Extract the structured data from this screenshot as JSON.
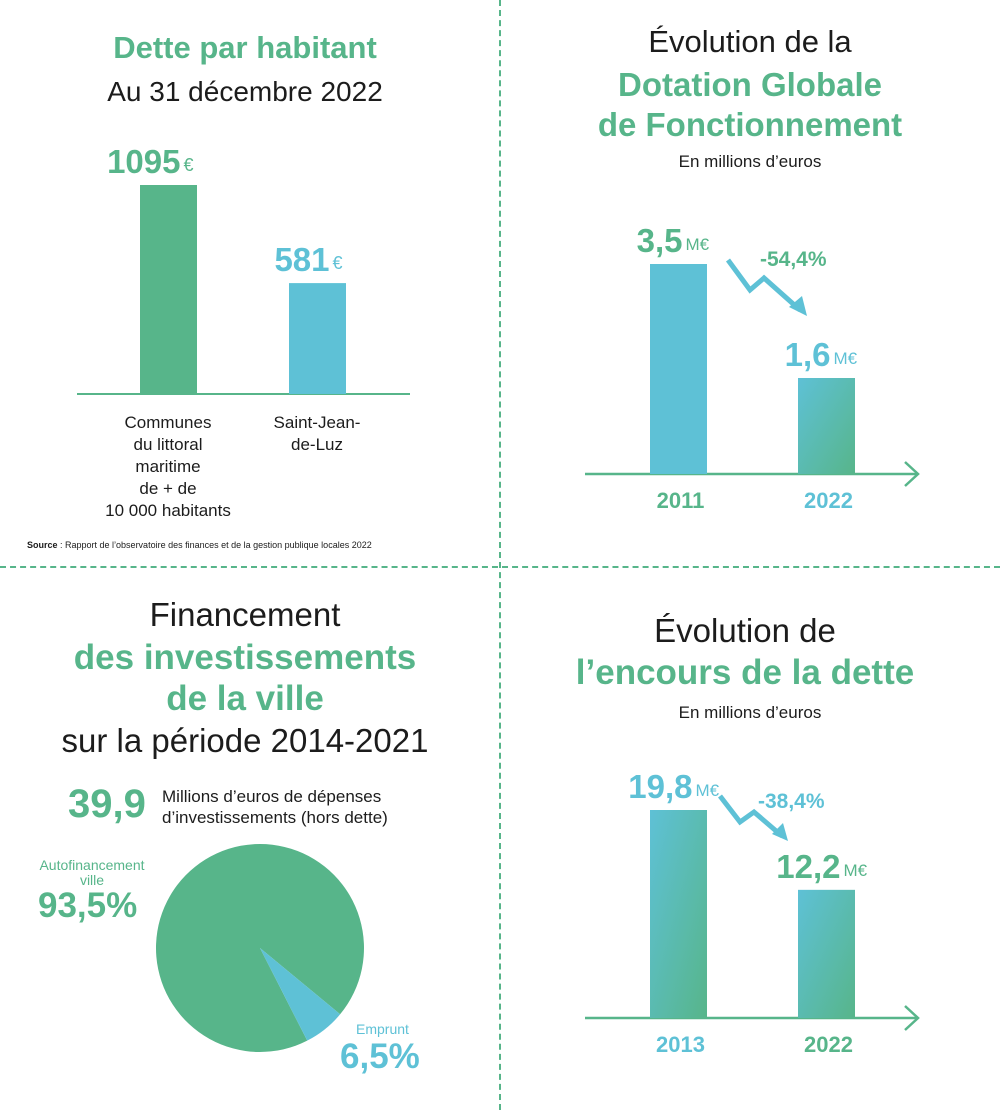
{
  "colors": {
    "green": "#57b58a",
    "blue": "#5ec1d6",
    "text": "#1c1c1c"
  },
  "chart_data": [
    {
      "type": "bar",
      "title": "Dette par habitant",
      "subtitle": "Au 31 décembre 2022",
      "categories": [
        "Communes du littoral maritime de + de 10 000 habitants",
        "Saint-Jean-de-Luz"
      ],
      "category_lines": [
        [
          "Communes",
          "du littoral",
          "maritime",
          "de + de",
          "10 000 habitants"
        ],
        [
          "Saint-Jean-",
          "de-Luz"
        ]
      ],
      "values": [
        1095,
        581
      ],
      "value_labels": [
        "1095",
        "581"
      ],
      "unit": "€",
      "source_label": "Source",
      "source_text": " : Rapport de l’observatoire des finances et de la gestion publique locales 2022"
    },
    {
      "type": "bar",
      "title_line1": "Évolution de la",
      "title_line2": "Dotation Globale",
      "title_line3": "de Fonctionnement",
      "subtitle": "En millions d’euros",
      "categories": [
        "2011",
        "2022"
      ],
      "values": [
        3.5,
        1.6
      ],
      "value_labels": [
        "3,5",
        "1,6"
      ],
      "unit": "M€",
      "change_label": "-54,4%"
    },
    {
      "type": "pie",
      "title_line1": "Financement",
      "title_line2": "des investissements",
      "title_line3": "de la ville",
      "title_line4": "sur la période 2014-2021",
      "total_value": "39,9",
      "total_line1": "Millions d’euros de dépenses",
      "total_line2": "d’investissements (hors dette)",
      "slices": [
        {
          "label_line1": "Autofinancement",
          "label_line2": "ville",
          "value": 93.5,
          "value_label": "93,5%"
        },
        {
          "label_line1": "Emprunt",
          "value": 6.5,
          "value_label": "6,5%"
        }
      ]
    },
    {
      "type": "bar",
      "title_line1": "Évolution de",
      "title_line2": "l’encours de la dette",
      "subtitle": "En millions d’euros",
      "categories": [
        "2013",
        "2022"
      ],
      "values": [
        19.8,
        12.2
      ],
      "value_labels": [
        "19,8",
        "12,2"
      ],
      "unit": "M€",
      "change_label": "-38,4%"
    }
  ]
}
